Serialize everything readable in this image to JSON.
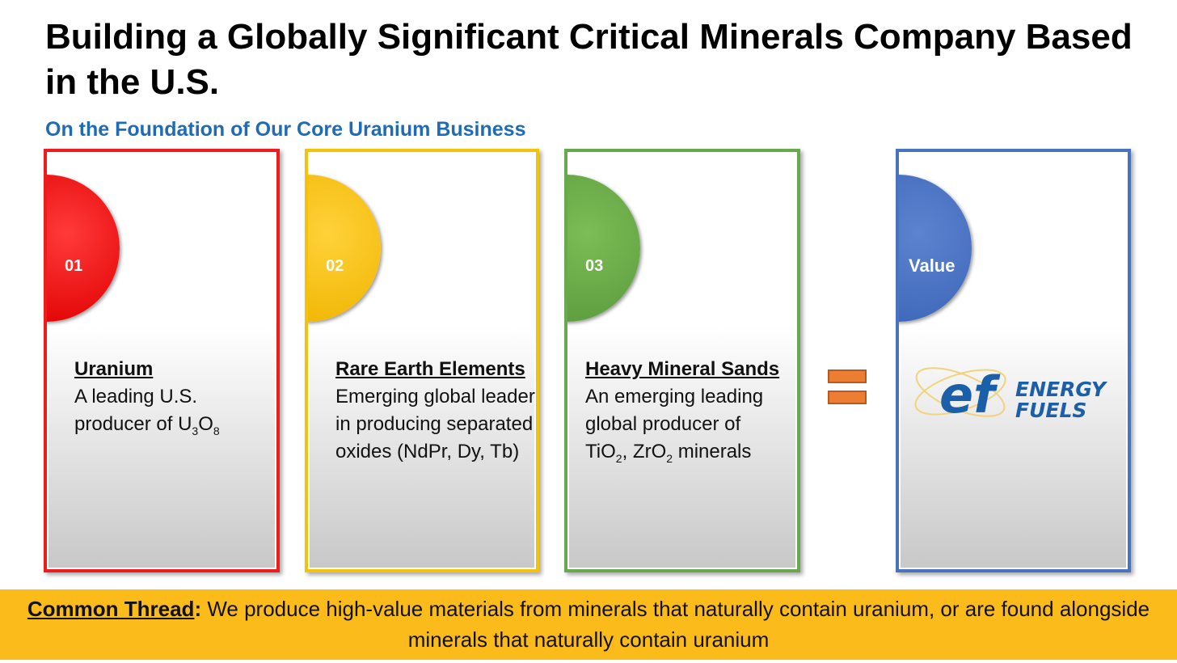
{
  "header": {
    "title": "Building a Globally Significant Critical Minerals Company Based in the U.S.",
    "subtitle": "On the Foundation of Our Core Uranium Business"
  },
  "cards": [
    {
      "number": "01",
      "heading": "Uranium",
      "line1": "A leading U.S.",
      "line2_pre": "producer of U",
      "sub1": "3",
      "mid": "O",
      "sub2": "8"
    },
    {
      "number": "02",
      "heading": "Rare Earth Elements",
      "body": "Emerging global leader in producing separated oxides (NdPr, Dy, Tb)"
    },
    {
      "number": "03",
      "heading": "Heavy Mineral Sands",
      "line1": "An emerging leading global producer of",
      "a": "TiO",
      "sub_a": "2",
      "b": ", ZrO",
      "sub_b": "2",
      "c": " minerals"
    }
  ],
  "value_card": {
    "label": "Value",
    "logo_mark": "ef",
    "logo_line1": "ENERGY",
    "logo_line2": "FUELS"
  },
  "footer": {
    "label": "Common Thread",
    "colon": ":",
    "text": " We produce high-value materials from minerals that naturally contain uranium, or are found alongside minerals that naturally contain uranium"
  },
  "colors": {
    "red": "#ee1c1c",
    "yellow": "#f5c20a",
    "green": "#6aa84f",
    "blue": "#4a72bf",
    "accent_orange": "#ed7d31",
    "footer_bg": "#fbbb1b",
    "subtitle": "#1f6bb5",
    "logo_blue": "#1a5fa8"
  }
}
